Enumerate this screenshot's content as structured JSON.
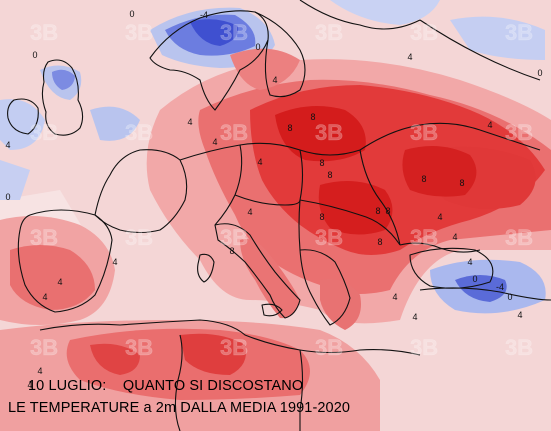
{
  "caption": {
    "line1": "10 LUGLIO:    QUANTO SI DISCOSTANO",
    "line2": "LE TEMPERATURE a 2m DALLA MEDIA 1991-2020"
  },
  "watermark": {
    "text": "3B"
  },
  "contours": {
    "labels": [
      "-4",
      "0",
      "0",
      "0",
      "0",
      "0",
      "4",
      "4",
      "4",
      "4",
      "4",
      "4",
      "4",
      "4",
      "4",
      "4",
      "4",
      "4",
      "4",
      "4",
      "4",
      "4",
      "4",
      "4",
      "4",
      "8",
      "8",
      "8",
      "8",
      "8",
      "8",
      "8",
      "8",
      "8",
      "8",
      "8",
      "-4",
      "0",
      "0"
    ]
  },
  "colors": {
    "background": "#f4d6d6",
    "sea_light": "#f6e0e0",
    "anomaly_plus_2": "#f2a8a8",
    "anomaly_plus_4": "#ea7070",
    "anomaly_plus_6": "#e23a3a",
    "anomaly_plus_8": "#d51e1e",
    "anomaly_minus_2": "#b7c2ee",
    "anomaly_minus_4": "#6f7fe0",
    "anomaly_minus_6": "#3f4fd0",
    "borders": "#111111"
  }
}
